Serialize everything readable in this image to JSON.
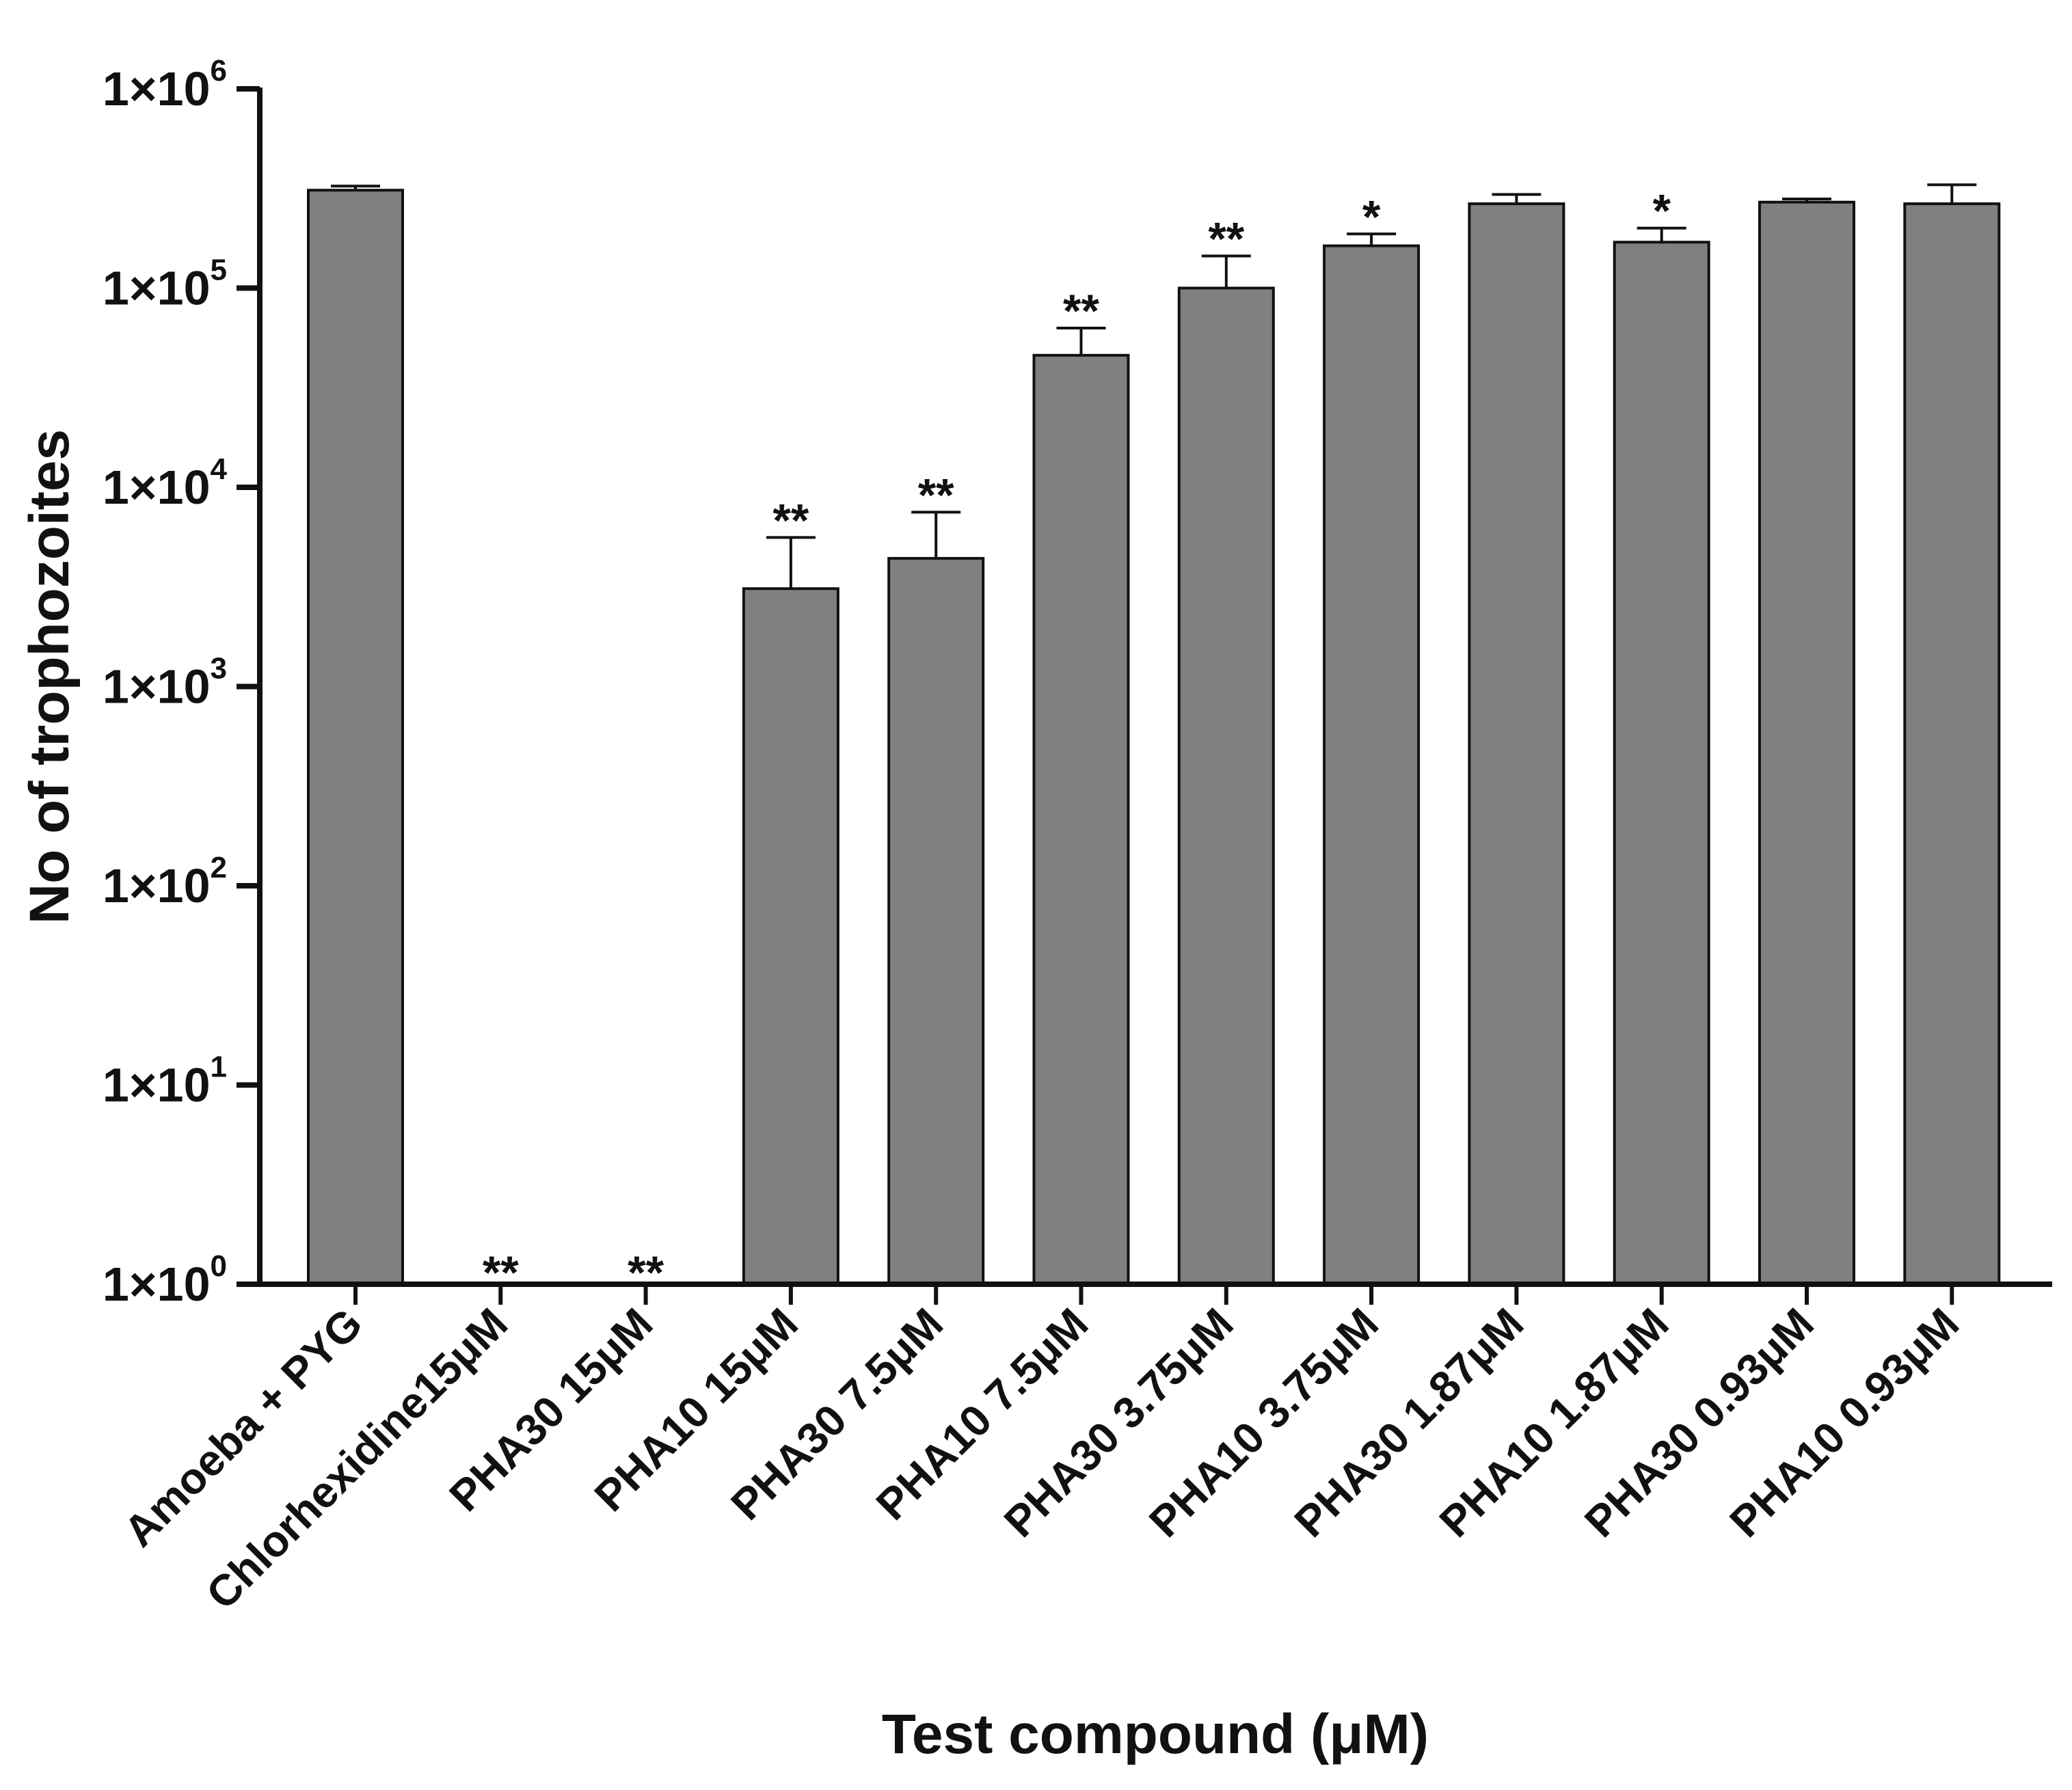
{
  "chart_data": {
    "type": "bar",
    "xlabel": "Test compound (μM)",
    "ylabel": "No of trophozoites",
    "yscale": "log",
    "ylim": [
      1,
      1000000
    ],
    "yticks": [
      {
        "base": "1×10",
        "exp": "0",
        "value": 1
      },
      {
        "base": "1×10",
        "exp": "1",
        "value": 10
      },
      {
        "base": "1×10",
        "exp": "2",
        "value": 100
      },
      {
        "base": "1×10",
        "exp": "3",
        "value": 1000
      },
      {
        "base": "1×10",
        "exp": "4",
        "value": 10000
      },
      {
        "base": "1×10",
        "exp": "5",
        "value": 100000
      },
      {
        "base": "1×10",
        "exp": "6",
        "value": 1000000
      }
    ],
    "categories": [
      "Amoeba + PYG",
      "Chlorhexidine15μM",
      "PHA30 15μM",
      "PHA10 15μM",
      "PHA30 7.5μM",
      "PHA10 7.5μM",
      "PHA30 3.75μM",
      "PHA10 3.75μM",
      "PHA30 1.87μM",
      "PHA10 1.87μM",
      "PHA30 0.93μM",
      "PHA10 0.93μM"
    ],
    "values": [
      310000,
      0,
      0,
      3100,
      4400,
      46000,
      100000,
      163000,
      265000,
      170000,
      270000,
      265000
    ],
    "error_upper": [
      325000,
      null,
      null,
      5600,
      7500,
      63000,
      145000,
      187000,
      295000,
      200000,
      280000,
      330000
    ],
    "significance": [
      "",
      "**",
      "**",
      "**",
      "**",
      "**",
      "**",
      "*",
      "",
      "*",
      "",
      ""
    ],
    "bar_color": "#808080",
    "edge_color": "#111111",
    "grid": false,
    "legend": "none"
  }
}
